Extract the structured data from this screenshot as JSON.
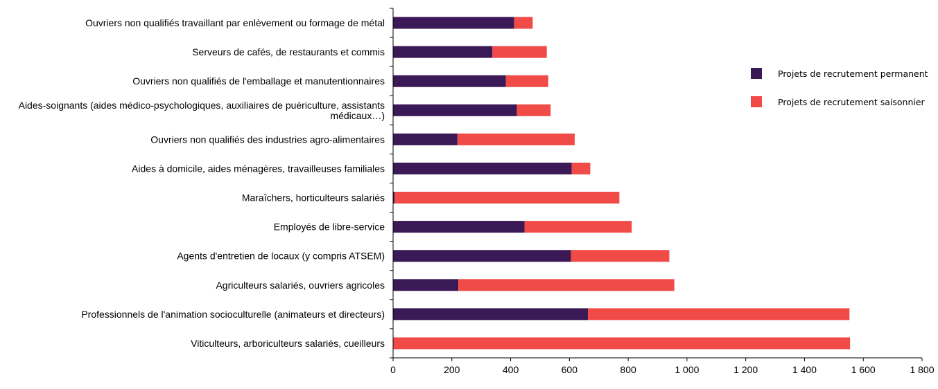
{
  "chart_data": {
    "type": "bar",
    "orientation": "horizontal",
    "stacked": true,
    "categories": [
      [
        "Ouvriers non qualifiés travaillant par enlèvement ou formage de métal"
      ],
      [
        "Serveurs de cafés, de restaurants et commis"
      ],
      [
        "Ouvriers non qualifiés de l'emballage et manutentionnaires"
      ],
      [
        "Aides-soignants (aides médico-psychologiques, auxiliaires de puériculture, assistants",
        "médicaux…)"
      ],
      [
        "Ouvriers non qualifiés des industries agro-alimentaires"
      ],
      [
        "Aides à domicile, aides ménagères, travailleuses familiales"
      ],
      [
        "Maraîchers, horticulteurs salariés"
      ],
      [
        "Employés de libre-service"
      ],
      [
        "Agents d'entretien de locaux (y compris ATSEM)"
      ],
      [
        "Agriculteurs salariés, ouvriers agricoles"
      ],
      [
        "Professionnels de l'animation socioculturelle (animateurs et directeurs)"
      ],
      [
        "Viticulteurs, arboriculteurs salariés, cueilleurs"
      ]
    ],
    "series": [
      {
        "name": "Projets de recrutement permanent",
        "color": "#3b1856",
        "values": [
          412,
          338,
          384,
          421,
          219,
          608,
          5,
          447,
          605,
          222,
          663,
          0
        ]
      },
      {
        "name": "Projets de recrutement saisonnier",
        "color": "#f04b46",
        "values": [
          63,
          185,
          144,
          115,
          399,
          63,
          765,
          365,
          335,
          735,
          890,
          1555
        ]
      }
    ],
    "xlim": [
      0,
      1800
    ],
    "xticks": [
      0,
      200,
      400,
      600,
      800,
      1000,
      1200,
      1400,
      1600,
      1800
    ],
    "xtick_labels": [
      "0",
      "200",
      "400",
      "600",
      "800",
      "1 000",
      "1 200",
      "1 400",
      "1 600",
      "1 800"
    ],
    "title": "",
    "xlabel": "",
    "ylabel": "",
    "grid": false,
    "legend": "right"
  }
}
